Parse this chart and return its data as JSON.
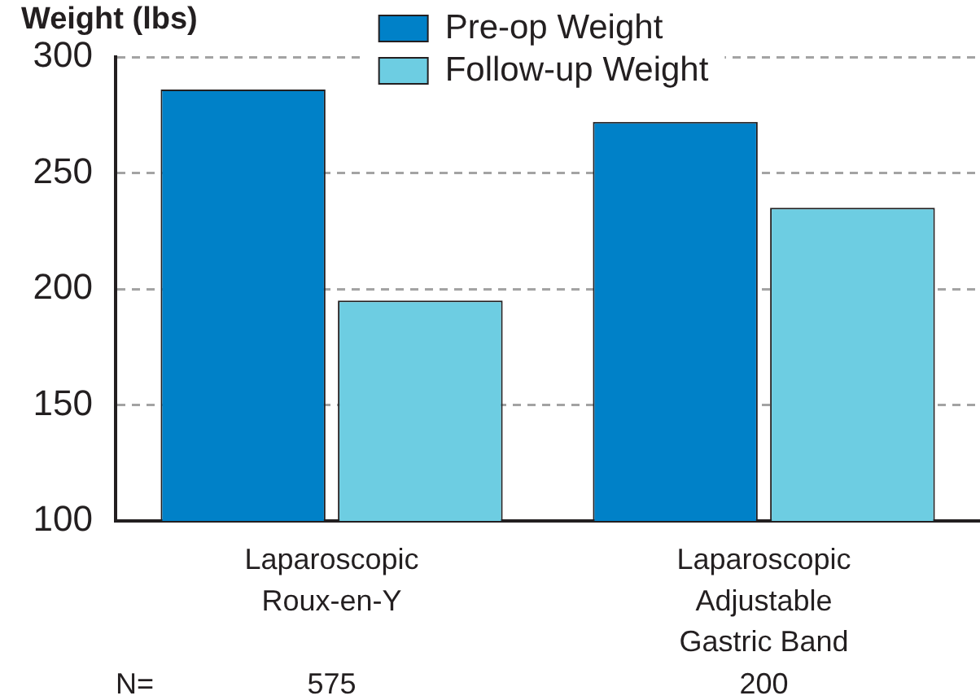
{
  "chart_data": {
    "type": "bar",
    "ylabel": "Weight (lbs)",
    "categories": [
      "Laparoscopic Roux-en-Y",
      "Laparoscopic Adjustable Gastric Band"
    ],
    "series": [
      {
        "name": "Pre-op Weight",
        "color": "#0081c8",
        "values": [
          286,
          272
        ]
      },
      {
        "name": "Follow-up Weight",
        "color": "#6dcde2",
        "values": [
          195,
          235
        ]
      }
    ],
    "ylim": [
      100,
      300
    ],
    "yticks": [
      100,
      150,
      200,
      250,
      300
    ],
    "grid": "y",
    "legend": "top",
    "annotations": [
      "N=",
      {
        "text": "575",
        "x": "Laparoscopic Roux-en-Y"
      },
      {
        "text": "200",
        "x": "Laparoscopic Adjustable Gastric Band"
      }
    ]
  }
}
